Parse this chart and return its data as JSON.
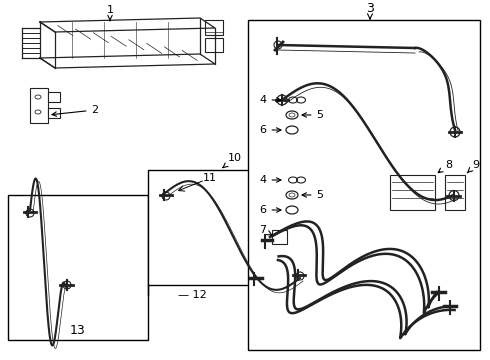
{
  "bg": "#ffffff",
  "lc": "#222222",
  "bc": "#000000",
  "figw": 4.9,
  "figh": 3.6,
  "dpi": 100
}
